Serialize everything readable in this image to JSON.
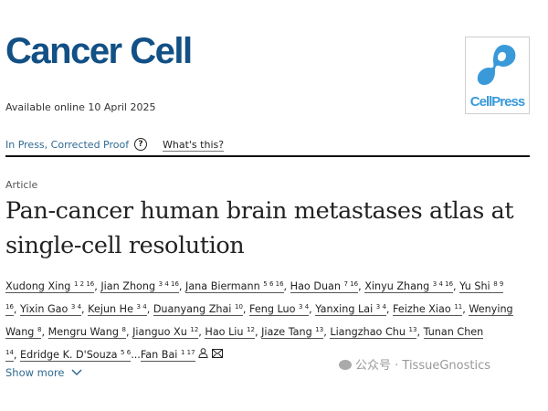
{
  "header": {
    "journal_title": "Cancer Cell",
    "publisher_logo_text": "CellPress",
    "available_online": "Available online 10 April 2025"
  },
  "status": {
    "label": "In Press, Corrected Proof",
    "help_icon": "?",
    "whats_this": "What's this?"
  },
  "article": {
    "type": "Article",
    "title": "Pan-cancer human brain metastases atlas at single-cell resolution",
    "authors": [
      {
        "name": "Xudong Xing",
        "sup": "1 2 16",
        "sep": ", "
      },
      {
        "name": "Jian Zhong",
        "sup": "3 4 16",
        "sep": ", "
      },
      {
        "name": "Jana Biermann",
        "sup": "5 6 16",
        "sep": ", "
      },
      {
        "name": "Hao Duan",
        "sup": "7 16",
        "sep": ", "
      },
      {
        "name": "Xinyu Zhang",
        "sup": "3 4 16",
        "sep": ", "
      },
      {
        "name": "Yu Shi",
        "sup": "8 9 16",
        "sep": ", "
      },
      {
        "name": "Yixin Gao",
        "sup": "3 4",
        "sep": ", "
      },
      {
        "name": "Kejun He",
        "sup": "3 4",
        "sep": ", "
      },
      {
        "name": "Duanyang Zhai",
        "sup": "10",
        "sep": ", "
      },
      {
        "name": "Feng Luo",
        "sup": "3 4",
        "sep": ", "
      },
      {
        "name": "Yanxing Lai",
        "sup": "3 4",
        "sep": ", "
      },
      {
        "name": "Feizhe Xiao",
        "sup": "11",
        "sep": ", "
      },
      {
        "name": "Wenying Wang",
        "sup": "8",
        "sep": ", "
      },
      {
        "name": "Mengru Wang",
        "sup": "8",
        "sep": ", "
      },
      {
        "name": "Jianguo Xu",
        "sup": "12",
        "sep": ", "
      },
      {
        "name": "Hao Liu",
        "sup": "12",
        "sep": ", "
      },
      {
        "name": "Jiaze Tang",
        "sup": "13",
        "sep": ", "
      },
      {
        "name": "Liangzhao Chu",
        "sup": "13",
        "sep": ", "
      },
      {
        "name": "Tunan Chen",
        "sup": "14",
        "sep": ", "
      },
      {
        "name": "Edridge K. D'Souza",
        "sup": "5 6",
        "sep": "..."
      },
      {
        "name": "Fan Bai",
        "sup": "1 17",
        "sep": ""
      }
    ],
    "show_more": "Show more"
  },
  "watermark": "公众号 · TissueGnostics",
  "colors": {
    "journal": "#125085",
    "link": "#2f6a92",
    "cellpress": "#3a9ad9"
  }
}
